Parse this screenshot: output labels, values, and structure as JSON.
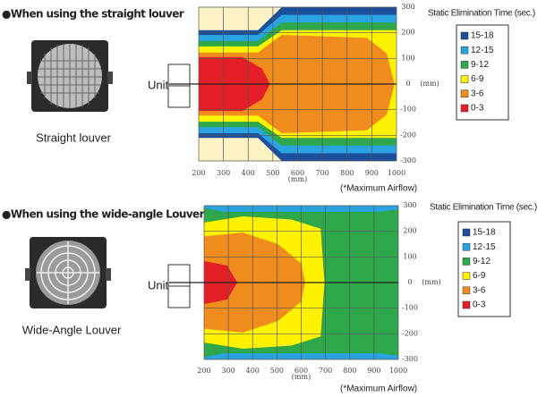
{
  "panels": [
    {
      "heading": "●When using the straight louver",
      "caption": "Straight louver",
      "unit_label": "Unit",
      "legend_title": "Static Elimination Time (sec.)",
      "legend": [
        {
          "label": "15-18",
          "color": "#1b4f9c"
        },
        {
          "label": "12-15",
          "color": "#2aa4e0"
        },
        {
          "label": "9-12",
          "color": "#2ea84a"
        },
        {
          "label": "6-9",
          "color": "#fff200"
        },
        {
          "label": "3-6",
          "color": "#f08c1e"
        },
        {
          "label": "0-3",
          "color": "#e41e26"
        }
      ],
      "x_ticks": [
        "200",
        "300",
        "400",
        "500",
        "600",
        "700",
        "800",
        "900",
        "1000"
      ],
      "x_unit": "(mm)",
      "y_ticks": [
        "300",
        "200",
        "100",
        "0",
        "-100",
        "-200",
        "-300"
      ],
      "y_unit": "(mm)",
      "note": "(*Maximum Airflow)"
    },
    {
      "heading": "●When using the wide-angle Louver",
      "caption": "Wide-Angle Louver",
      "unit_label": "Unit",
      "legend_title": "Static Elimination Time (sec.)",
      "legend": [
        {
          "label": "15-18",
          "color": "#1b4f9c"
        },
        {
          "label": "12-15",
          "color": "#2aa4e0"
        },
        {
          "label": "9-12",
          "color": "#2ea84a"
        },
        {
          "label": "6-9",
          "color": "#fff200"
        },
        {
          "label": "3-6",
          "color": "#f08c1e"
        },
        {
          "label": "0-3",
          "color": "#e41e26"
        }
      ],
      "x_ticks": [
        "200",
        "300",
        "400",
        "500",
        "600",
        "700",
        "800",
        "900",
        "1000"
      ],
      "x_unit": "(mm)",
      "y_ticks": [
        "300",
        "200",
        "100",
        "0",
        "-100",
        "-200",
        "-300"
      ],
      "y_unit": "(mm)",
      "note": "(*Maximum Airflow)"
    }
  ]
}
